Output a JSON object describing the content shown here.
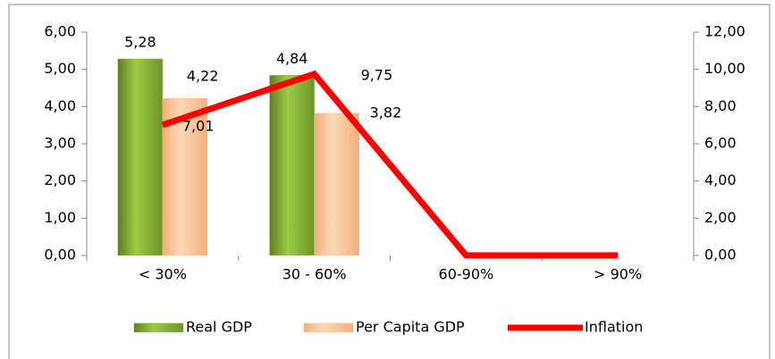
{
  "chart_data": {
    "type": "bar",
    "categories": [
      "< 30%",
      "30 - 60%",
      "60-90%",
      "> 90%"
    ],
    "series": [
      {
        "name": "Real GDP",
        "color": "#8db33a",
        "values": [
          5.28,
          4.84,
          null,
          null
        ],
        "value_labels": [
          "5,28",
          "4,84",
          null,
          null
        ]
      },
      {
        "name": "Per Capita GDP",
        "color": "#fac090",
        "values": [
          4.22,
          3.82,
          null,
          null
        ],
        "value_labels": [
          "4,22",
          "3,82",
          null,
          null
        ]
      },
      {
        "name": "Inflation",
        "type": "line",
        "axis": "y2",
        "color": "#ff0000",
        "values": [
          7.01,
          9.75,
          0,
          0
        ],
        "value_labels": [
          "7,01",
          "9,75",
          null,
          null
        ]
      }
    ],
    "ylim": [
      0,
      6
    ],
    "yticks": [
      {
        "value": 0,
        "label": "0,00"
      },
      {
        "value": 1,
        "label": "1,00"
      },
      {
        "value": 2,
        "label": "2,00"
      },
      {
        "value": 3,
        "label": "3,00"
      },
      {
        "value": 4,
        "label": "4,00"
      },
      {
        "value": 5,
        "label": "5,00"
      },
      {
        "value": 6,
        "label": "6,00"
      }
    ],
    "y2lim": [
      0,
      12
    ],
    "y2ticks": [
      {
        "value": 0,
        "label": "0,00"
      },
      {
        "value": 2,
        "label": "2,00"
      },
      {
        "value": 4,
        "label": "4,00"
      },
      {
        "value": 6,
        "label": "6,00"
      },
      {
        "value": 8,
        "label": "8,00"
      },
      {
        "value": 10,
        "label": "10,00"
      },
      {
        "value": 12,
        "label": "12,00"
      }
    ],
    "legend": "bottom"
  }
}
